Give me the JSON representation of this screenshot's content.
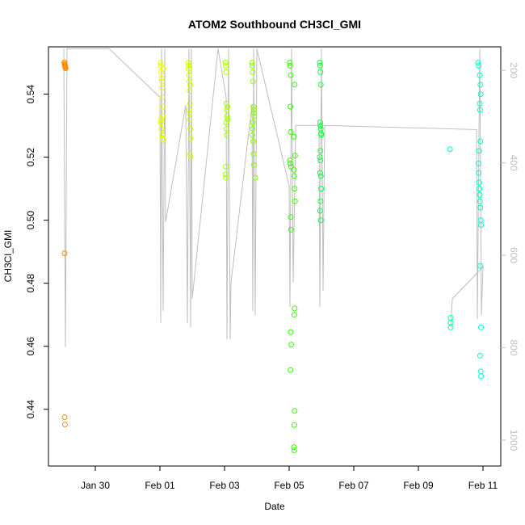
{
  "chart_data": {
    "type": "scatter",
    "title": "ATOM2 Southbound CH3Cl_GMI",
    "x_label": "Date",
    "y_label": "CH3Cl_GMI",
    "xlim": [
      28.55,
      42.55
    ],
    "ylim": [
      0.422,
      0.555
    ],
    "y2lim": [
      1056,
      149
    ],
    "xticks": [
      {
        "value": 30,
        "label": "Jan 30"
      },
      {
        "value": 32,
        "label": "Feb 01"
      },
      {
        "value": 34,
        "label": "Feb 03"
      },
      {
        "value": 36,
        "label": "Feb 05"
      },
      {
        "value": 38,
        "label": "Feb 07"
      },
      {
        "value": 40,
        "label": "Feb 09"
      },
      {
        "value": 42,
        "label": "Feb 11"
      }
    ],
    "yticks": [
      0.44,
      0.46,
      0.48,
      {
        "value": 0.5,
        "label": "0.50"
      },
      0.52,
      0.54
    ],
    "y2ticks": [
      200,
      400,
      600,
      800,
      1000
    ],
    "series": [
      {
        "type": "line",
        "axis": "y2",
        "color": "#bebebe",
        "x": [
          29.025,
          29.075,
          29.125,
          30.425,
          32.0,
          32.025,
          32.05,
          32.1,
          32.15,
          32.175,
          32.8,
          32.85,
          32.9,
          32.95,
          32.975,
          33.0,
          33.8,
          34.05,
          34.075,
          34.125,
          34.175,
          34.2,
          34.85,
          34.875,
          34.9,
          34.95,
          35.0,
          36.0,
          36.025,
          36.075,
          36.125,
          36.175,
          36.2,
          36.925,
          36.95,
          37.0,
          37.05,
          37.1,
          41.8,
          41.825,
          41.9,
          41.95,
          42.0,
          41.05,
          41.0
        ],
        "values": [
          153,
          799,
          153,
          153,
          258,
          747,
          153,
          721,
          153,
          528,
          275,
          747,
          153,
          756,
          153,
          694,
          153,
          258,
          782,
          153,
          782,
          659,
          275,
          721,
          153,
          730,
          153,
          450,
          712,
          153,
          659,
          450,
          319,
          319,
          712,
          153,
          677,
          319,
          328,
          738,
          153,
          730,
          625,
          694,
          756
        ]
      },
      {
        "color": "#ff8c00",
        "x": [
          29.04,
          29.05,
          29.06,
          29.07,
          29.05,
          29.06,
          29.07,
          29.08,
          29.05,
          29.05,
          29.06
        ],
        "values": [
          0.55,
          0.5495,
          0.549,
          0.5485,
          0.55,
          0.5492,
          0.5488,
          0.5482,
          0.4895,
          0.4375,
          0.4352
        ]
      },
      {
        "color": "#e8ff00",
        "x": [
          32.02,
          32.03,
          32.04,
          32.05,
          32.06,
          32.07,
          32.08,
          32.09,
          32.03,
          32.05,
          32.07,
          32.09,
          32.11,
          32.04,
          32.1,
          32.06
        ],
        "values": [
          0.55,
          0.549,
          0.547,
          0.545,
          0.542,
          0.539,
          0.536,
          0.533,
          0.531,
          0.529,
          0.527,
          0.526,
          0.5255,
          0.532,
          0.548,
          0.544
        ]
      },
      {
        "color": "#d6ff00",
        "x": [
          32.88,
          32.89,
          32.9,
          32.91,
          32.92,
          32.93,
          32.9,
          32.91,
          32.92,
          32.94,
          32.95,
          32.93,
          32.95,
          32.89,
          32.94
        ],
        "values": [
          0.55,
          0.549,
          0.546,
          0.544,
          0.541,
          0.537,
          0.535,
          0.534,
          0.532,
          0.529,
          0.526,
          0.521,
          0.52,
          0.548,
          0.543
        ]
      },
      {
        "color": "#a6ff00",
        "x": [
          34.03,
          34.04,
          34.05,
          34.06,
          34.07,
          34.08,
          34.05,
          34.06,
          34.07,
          34.04,
          34.03,
          34.04,
          34.09,
          34.1
        ],
        "values": [
          0.55,
          0.549,
          0.547,
          0.537,
          0.535,
          0.533,
          0.531,
          0.529,
          0.527,
          0.517,
          0.5145,
          0.5135,
          0.536,
          0.532
        ]
      },
      {
        "color": "#8cff00",
        "x": [
          34.85,
          34.86,
          34.87,
          34.88,
          34.89,
          34.9,
          34.91,
          34.92,
          34.88,
          34.87,
          34.86,
          34.89,
          34.9,
          34.91,
          34.95
        ],
        "values": [
          0.55,
          0.549,
          0.547,
          0.544,
          0.536,
          0.535,
          0.534,
          0.533,
          0.531,
          0.529,
          0.527,
          0.525,
          0.521,
          0.5175,
          0.5135
        ]
      },
      {
        "color": "#33ff00",
        "x": [
          36.02,
          36.03,
          36.05,
          36.17,
          36.04,
          36.05,
          36.03,
          36.04,
          36.06,
          36.15,
          36.16,
          36.17,
          36.18,
          36.05,
          36.06,
          36.17,
          36.16,
          36.05,
          36.07,
          36.04,
          36.17,
          36.16,
          36.15,
          36.16,
          36.18,
          36.15
        ],
        "values": [
          0.55,
          0.549,
          0.546,
          0.543,
          0.536,
          0.528,
          0.519,
          0.518,
          0.517,
          0.516,
          0.514,
          0.51,
          0.506,
          0.501,
          0.497,
          0.472,
          0.47,
          0.4645,
          0.4605,
          0.4525,
          0.4395,
          0.435,
          0.428,
          0.427,
          0.5205,
          0.5265
        ]
      },
      {
        "color": "#0fff40",
        "x": [
          36.95,
          36.96,
          36.97,
          36.98,
          36.96,
          36.97,
          36.98,
          36.99,
          36.95,
          36.97,
          36.96,
          36.98,
          36.99,
          36.97,
          36.96,
          36.98,
          36.99,
          36.97
        ],
        "values": [
          0.55,
          0.549,
          0.547,
          0.543,
          0.531,
          0.53,
          0.529,
          0.527,
          0.52,
          0.519,
          0.515,
          0.514,
          0.51,
          0.506,
          0.503,
          0.5,
          0.5275,
          0.522
        ]
      },
      {
        "color": "#00ffb0",
        "x": [
          40.98,
          41.0,
          41.0,
          41.0
        ],
        "values": [
          0.5225,
          0.469,
          0.4675,
          0.466
        ]
      },
      {
        "color": "#00ffd0",
        "x": [
          41.85,
          41.87,
          41.9,
          41.92,
          41.93,
          41.9,
          41.91,
          41.92,
          41.88,
          41.86,
          41.87,
          41.88,
          41.89,
          41.9,
          41.91,
          41.92,
          41.93,
          41.94,
          41.92,
          41.94,
          41.91,
          41.93,
          41.94
        ],
        "values": [
          0.55,
          0.549,
          0.546,
          0.543,
          0.54,
          0.537,
          0.535,
          0.525,
          0.522,
          0.518,
          0.515,
          0.512,
          0.51,
          0.508,
          0.506,
          0.504,
          0.5,
          0.4985,
          0.4855,
          0.466,
          0.457,
          0.452,
          0.4505
        ]
      }
    ]
  }
}
